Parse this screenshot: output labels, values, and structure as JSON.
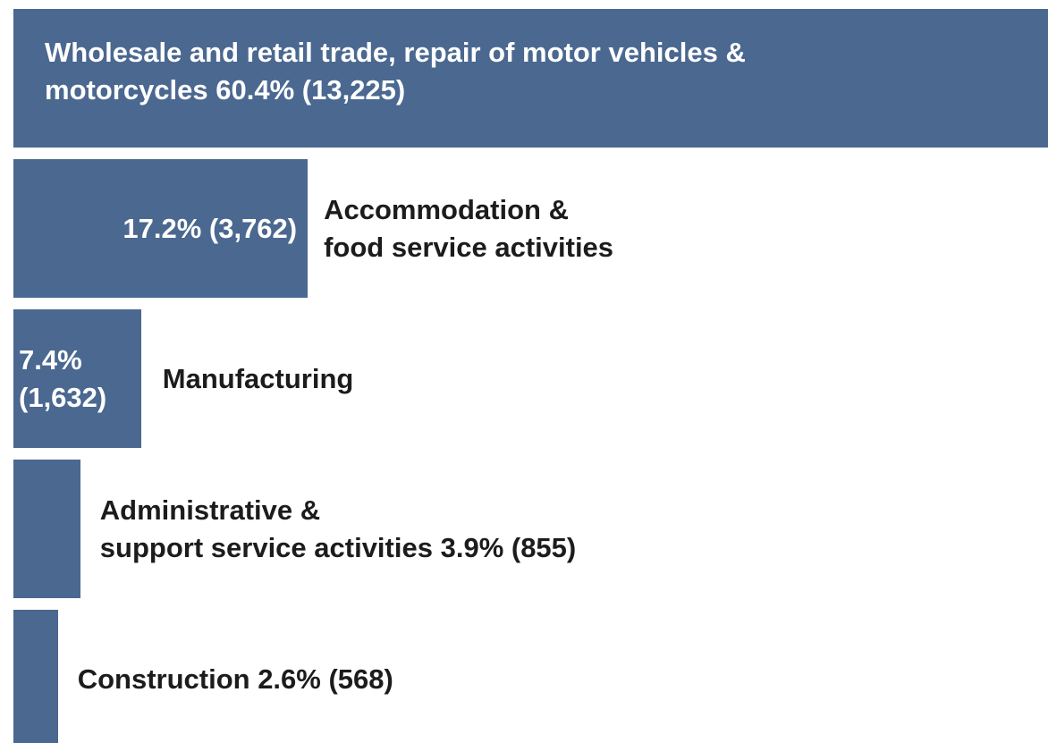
{
  "chart_data": {
    "type": "bar",
    "orientation": "horizontal",
    "categories": [
      "Wholesale and retail trade, repair of motor vehicles &\nmotorcycles",
      "Accommodation &\nfood service activities",
      "Manufacturing",
      "Administrative &\nsupport service activities",
      "Construction"
    ],
    "values": [
      13225,
      3762,
      1632,
      855,
      568
    ],
    "value_labels": [
      "60.4% (13,225)",
      "17.2% (3,762)",
      "7.4% (1,632)",
      "3.9% (855)",
      "2.6% (568)"
    ],
    "color": "#4a6890"
  }
}
